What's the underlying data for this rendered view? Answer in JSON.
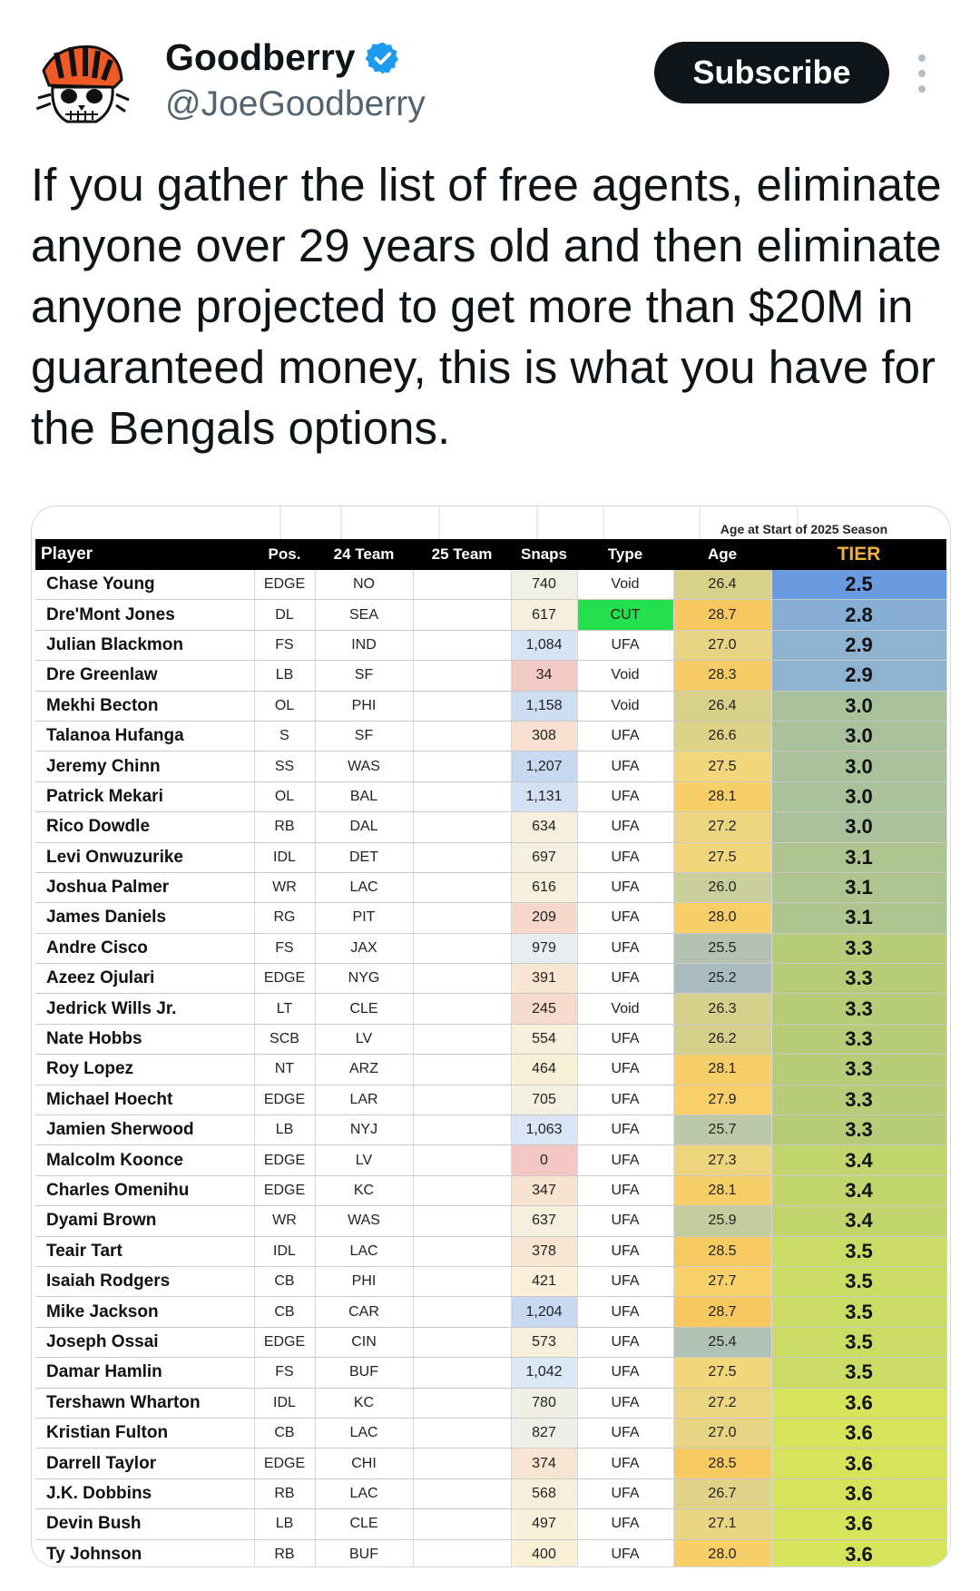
{
  "tweet": {
    "display_name": "Goodberry",
    "handle": "@JoeGoodberry",
    "subscribe_label": "Subscribe",
    "text": "If you gather the list of free agents, eliminate anyone over 29 years old and then eliminate anyone projected to get more than $20M in guaranteed money, this is what you have for the Bengals options."
  },
  "table": {
    "caption": "Age at Start of 2025 Season",
    "headers": [
      "Player",
      "Pos.",
      "24 Team",
      "25 Team",
      "Snaps",
      "Type",
      "Age",
      "TIER"
    ],
    "rows": [
      {
        "player": "Chase Young",
        "pos": "EDGE",
        "team24": "NO",
        "team25": "",
        "snaps": "740",
        "type": "Void",
        "age": "26.4",
        "tier": "2.5"
      },
      {
        "player": "Dre'Mont Jones",
        "pos": "DL",
        "team24": "SEA",
        "team25": "",
        "snaps": "617",
        "type": "CUT",
        "age": "28.7",
        "tier": "2.8"
      },
      {
        "player": "Julian Blackmon",
        "pos": "FS",
        "team24": "IND",
        "team25": "",
        "snaps": "1,084",
        "type": "UFA",
        "age": "27.0",
        "tier": "2.9"
      },
      {
        "player": "Dre Greenlaw",
        "pos": "LB",
        "team24": "SF",
        "team25": "",
        "snaps": "34",
        "type": "Void",
        "age": "28.3",
        "tier": "2.9"
      },
      {
        "player": "Mekhi Becton",
        "pos": "OL",
        "team24": "PHI",
        "team25": "",
        "snaps": "1,158",
        "type": "Void",
        "age": "26.4",
        "tier": "3.0"
      },
      {
        "player": "Talanoa Hufanga",
        "pos": "S",
        "team24": "SF",
        "team25": "",
        "snaps": "308",
        "type": "UFA",
        "age": "26.6",
        "tier": "3.0"
      },
      {
        "player": "Jeremy Chinn",
        "pos": "SS",
        "team24": "WAS",
        "team25": "",
        "snaps": "1,207",
        "type": "UFA",
        "age": "27.5",
        "tier": "3.0"
      },
      {
        "player": "Patrick Mekari",
        "pos": "OL",
        "team24": "BAL",
        "team25": "",
        "snaps": "1,131",
        "type": "UFA",
        "age": "28.1",
        "tier": "3.0"
      },
      {
        "player": "Rico Dowdle",
        "pos": "RB",
        "team24": "DAL",
        "team25": "",
        "snaps": "634",
        "type": "UFA",
        "age": "27.2",
        "tier": "3.0"
      },
      {
        "player": "Levi Onwuzurike",
        "pos": "IDL",
        "team24": "DET",
        "team25": "",
        "snaps": "697",
        "type": "UFA",
        "age": "27.5",
        "tier": "3.1"
      },
      {
        "player": "Joshua Palmer",
        "pos": "WR",
        "team24": "LAC",
        "team25": "",
        "snaps": "616",
        "type": "UFA",
        "age": "26.0",
        "tier": "3.1"
      },
      {
        "player": "James Daniels",
        "pos": "RG",
        "team24": "PIT",
        "team25": "",
        "snaps": "209",
        "type": "UFA",
        "age": "28.0",
        "tier": "3.1"
      },
      {
        "player": "Andre Cisco",
        "pos": "FS",
        "team24": "JAX",
        "team25": "",
        "snaps": "979",
        "type": "UFA",
        "age": "25.5",
        "tier": "3.3"
      },
      {
        "player": "Azeez Ojulari",
        "pos": "EDGE",
        "team24": "NYG",
        "team25": "",
        "snaps": "391",
        "type": "UFA",
        "age": "25.2",
        "tier": "3.3"
      },
      {
        "player": "Jedrick Wills Jr.",
        "pos": "LT",
        "team24": "CLE",
        "team25": "",
        "snaps": "245",
        "type": "Void",
        "age": "26.3",
        "tier": "3.3"
      },
      {
        "player": "Nate Hobbs",
        "pos": "SCB",
        "team24": "LV",
        "team25": "",
        "snaps": "554",
        "type": "UFA",
        "age": "26.2",
        "tier": "3.3"
      },
      {
        "player": "Roy Lopez",
        "pos": "NT",
        "team24": "ARZ",
        "team25": "",
        "snaps": "464",
        "type": "UFA",
        "age": "28.1",
        "tier": "3.3"
      },
      {
        "player": "Michael Hoecht",
        "pos": "EDGE",
        "team24": "LAR",
        "team25": "",
        "snaps": "705",
        "type": "UFA",
        "age": "27.9",
        "tier": "3.3"
      },
      {
        "player": "Jamien Sherwood",
        "pos": "LB",
        "team24": "NYJ",
        "team25": "",
        "snaps": "1,063",
        "type": "UFA",
        "age": "25.7",
        "tier": "3.3"
      },
      {
        "player": "Malcolm Koonce",
        "pos": "EDGE",
        "team24": "LV",
        "team25": "",
        "snaps": "0",
        "type": "UFA",
        "age": "27.3",
        "tier": "3.4"
      },
      {
        "player": "Charles Omenihu",
        "pos": "EDGE",
        "team24": "KC",
        "team25": "",
        "snaps": "347",
        "type": "UFA",
        "age": "28.1",
        "tier": "3.4"
      },
      {
        "player": "Dyami Brown",
        "pos": "WR",
        "team24": "WAS",
        "team25": "",
        "snaps": "637",
        "type": "UFA",
        "age": "25.9",
        "tier": "3.4"
      },
      {
        "player": "Teair Tart",
        "pos": "IDL",
        "team24": "LAC",
        "team25": "",
        "snaps": "378",
        "type": "UFA",
        "age": "28.5",
        "tier": "3.5"
      },
      {
        "player": "Isaiah Rodgers",
        "pos": "CB",
        "team24": "PHI",
        "team25": "",
        "snaps": "421",
        "type": "UFA",
        "age": "27.7",
        "tier": "3.5"
      },
      {
        "player": "Mike Jackson",
        "pos": "CB",
        "team24": "CAR",
        "team25": "",
        "snaps": "1,204",
        "type": "UFA",
        "age": "28.7",
        "tier": "3.5"
      },
      {
        "player": "Joseph Ossai",
        "pos": "EDGE",
        "team24": "CIN",
        "team25": "",
        "snaps": "573",
        "type": "UFA",
        "age": "25.4",
        "tier": "3.5"
      },
      {
        "player": "Damar Hamlin",
        "pos": "FS",
        "team24": "BUF",
        "team25": "",
        "snaps": "1,042",
        "type": "UFA",
        "age": "27.5",
        "tier": "3.5"
      },
      {
        "player": "Tershawn Wharton",
        "pos": "IDL",
        "team24": "KC",
        "team25": "",
        "snaps": "780",
        "type": "UFA",
        "age": "27.2",
        "tier": "3.6"
      },
      {
        "player": "Kristian Fulton",
        "pos": "CB",
        "team24": "LAC",
        "team25": "",
        "snaps": "827",
        "type": "UFA",
        "age": "27.0",
        "tier": "3.6"
      },
      {
        "player": "Darrell Taylor",
        "pos": "EDGE",
        "team24": "CHI",
        "team25": "",
        "snaps": "374",
        "type": "UFA",
        "age": "28.5",
        "tier": "3.6"
      },
      {
        "player": "J.K. Dobbins",
        "pos": "RB",
        "team24": "LAC",
        "team25": "",
        "snaps": "568",
        "type": "UFA",
        "age": "26.7",
        "tier": "3.6"
      },
      {
        "player": "Devin Bush",
        "pos": "LB",
        "team24": "CLE",
        "team25": "",
        "snaps": "497",
        "type": "UFA",
        "age": "27.1",
        "tier": "3.6"
      },
      {
        "player": "Ty Johnson",
        "pos": "RB",
        "team24": "BUF",
        "team25": "",
        "snaps": "400",
        "type": "UFA",
        "age": "28.0",
        "tier": "3.6"
      }
    ]
  }
}
